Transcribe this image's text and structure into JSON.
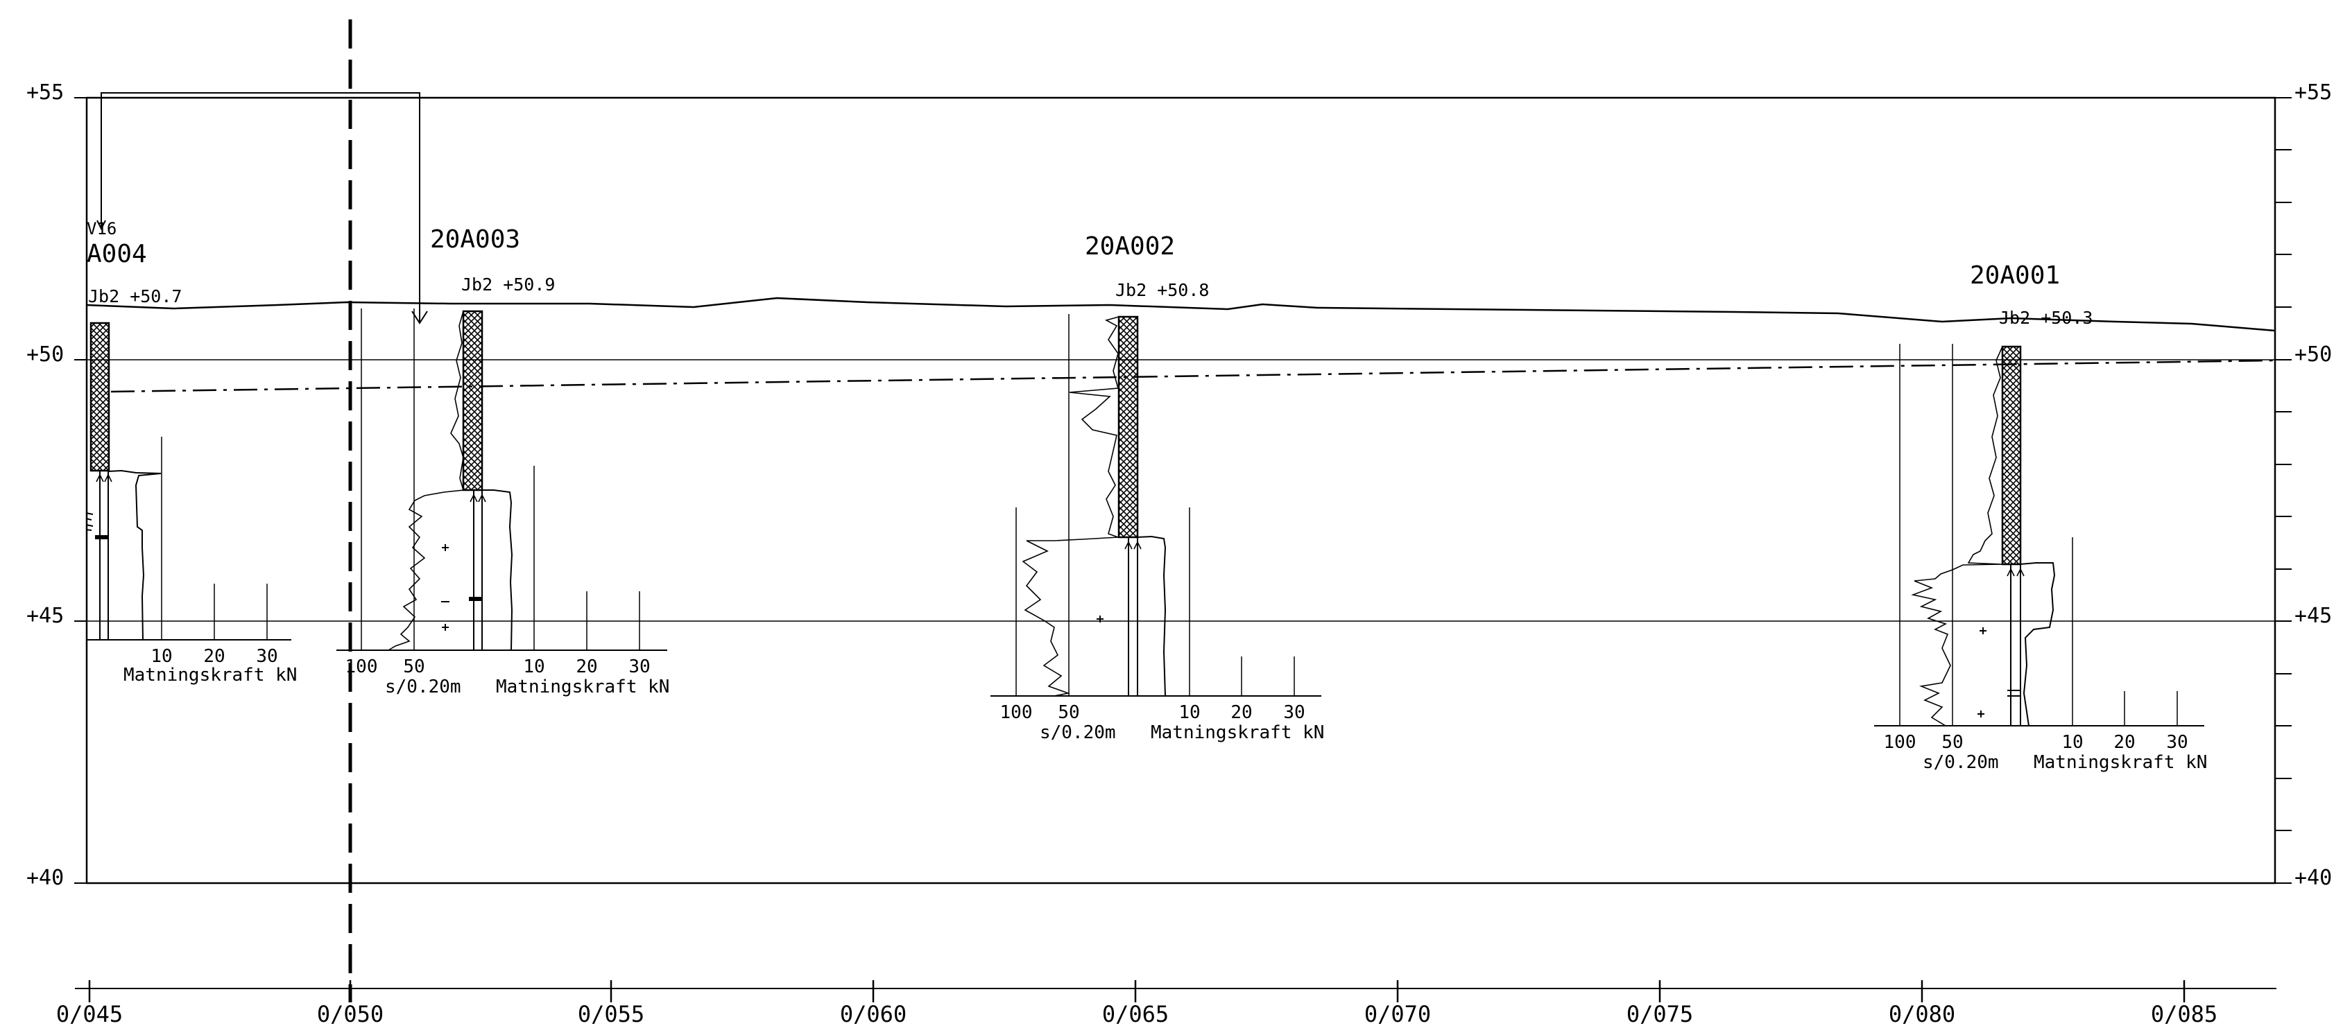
{
  "elevation_labels": [
    "+55",
    "+50",
    "+45",
    "+40"
  ],
  "chainage_labels": [
    "0/045",
    "0/050",
    "0/055",
    "0/060",
    "0/065",
    "0/070",
    "0/075",
    "0/080",
    "0/085"
  ],
  "boreholes": [
    {
      "id": "A004",
      "note": "V16",
      "ground_label": "Jb2 +50.7",
      "ticks_left": [],
      "ticks_right": [
        "10",
        "20",
        "30"
      ],
      "label_left": "",
      "label_right": "Matningskraft kN"
    },
    {
      "id": "20A003",
      "note": "",
      "ground_label": "Jb2 +50.9",
      "ticks_left": [
        "100",
        "50"
      ],
      "ticks_right": [
        "10",
        "20",
        "30"
      ],
      "label_left": "s/0.20m",
      "label_right": "Matningskraft kN"
    },
    {
      "id": "20A002",
      "note": "",
      "ground_label": "Jb2 +50.8",
      "ticks_left": [
        "100",
        "50"
      ],
      "ticks_right": [
        "10",
        "20",
        "30"
      ],
      "label_left": "s/0.20m",
      "label_right": "Matningskraft kN"
    },
    {
      "id": "20A001",
      "note": "",
      "ground_label": "Jb2 +50.3",
      "ticks_left": [
        "100",
        "50"
      ],
      "ticks_right": [
        "10",
        "20",
        "30"
      ],
      "label_left": "s/0.20m",
      "label_right": "Matningskraft kN"
    }
  ],
  "colors": {
    "ink": "#000000",
    "background": "#ffffff"
  }
}
